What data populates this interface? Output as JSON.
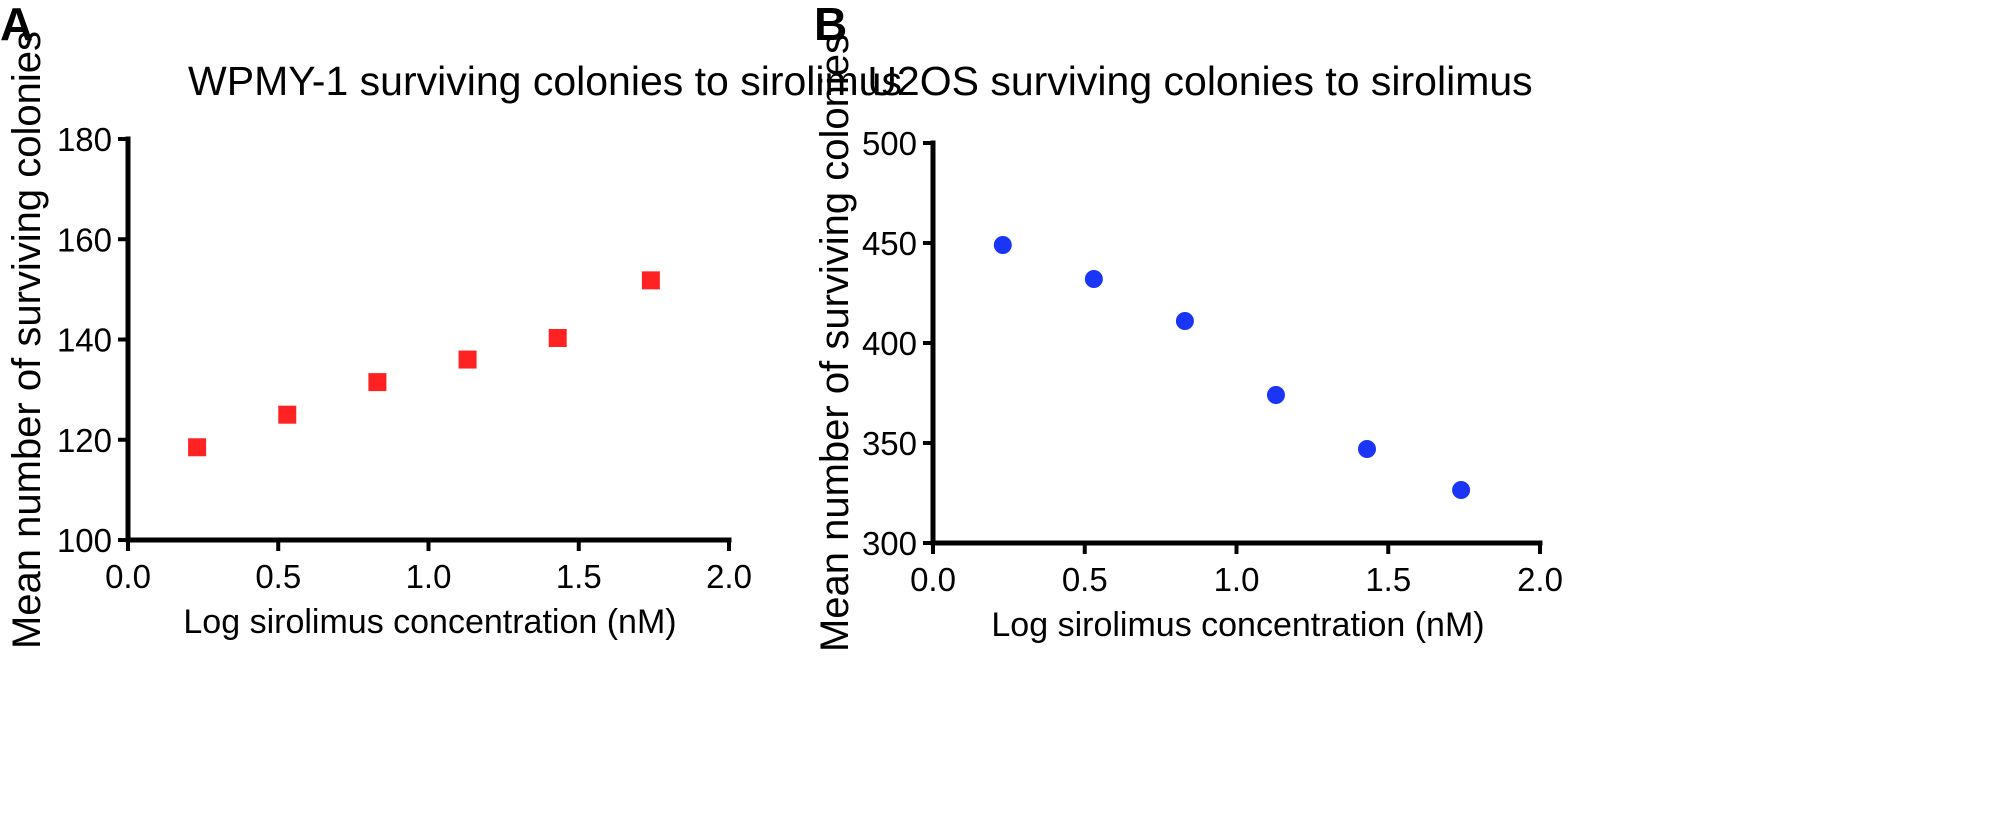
{
  "chart_data": [
    {
      "panel": "A",
      "type": "scatter",
      "title": "WPMY-1 surviving colonies to sirolimus",
      "xlabel": "Log sirolimus concentration (nM)",
      "ylabel": "Mean number of surviving colonies",
      "xlim": [
        0.0,
        2.0
      ],
      "ylim": [
        100,
        180
      ],
      "xticks": [
        0.0,
        0.5,
        1.0,
        1.5,
        2.0
      ],
      "xtick_labels": [
        "0.0",
        "0.5",
        "1.0",
        "1.5",
        "2.0"
      ],
      "yticks": [
        100,
        120,
        140,
        160,
        180
      ],
      "ytick_labels": [
        "100",
        "120",
        "140",
        "160",
        "180"
      ],
      "grid": false,
      "marker": "square",
      "color": "#ff2222",
      "x": [
        0.23,
        0.53,
        0.83,
        1.13,
        1.43,
        1.74
      ],
      "y": [
        118.5,
        125,
        131.5,
        136,
        140.3,
        151.8
      ]
    },
    {
      "panel": "B",
      "type": "scatter",
      "title": "U2OS surviving colonies to sirolimus",
      "xlabel": "Log sirolimus concentration (nM)",
      "ylabel": "Mean number of surviving colonies",
      "xlim": [
        0.0,
        2.0
      ],
      "ylim": [
        300,
        500
      ],
      "xticks": [
        0.0,
        0.5,
        1.0,
        1.5,
        2.0
      ],
      "xtick_labels": [
        "0.0",
        "0.5",
        "1.0",
        "1.5",
        "2.0"
      ],
      "yticks": [
        300,
        350,
        400,
        450,
        500
      ],
      "ytick_labels": [
        "300",
        "350",
        "400",
        "450",
        "500"
      ],
      "grid": false,
      "marker": "circle",
      "color": "#1a35f5",
      "x": [
        0.23,
        0.53,
        0.83,
        1.13,
        1.43,
        1.74
      ],
      "y": [
        449,
        432,
        411,
        374,
        347,
        326.5
      ]
    }
  ]
}
